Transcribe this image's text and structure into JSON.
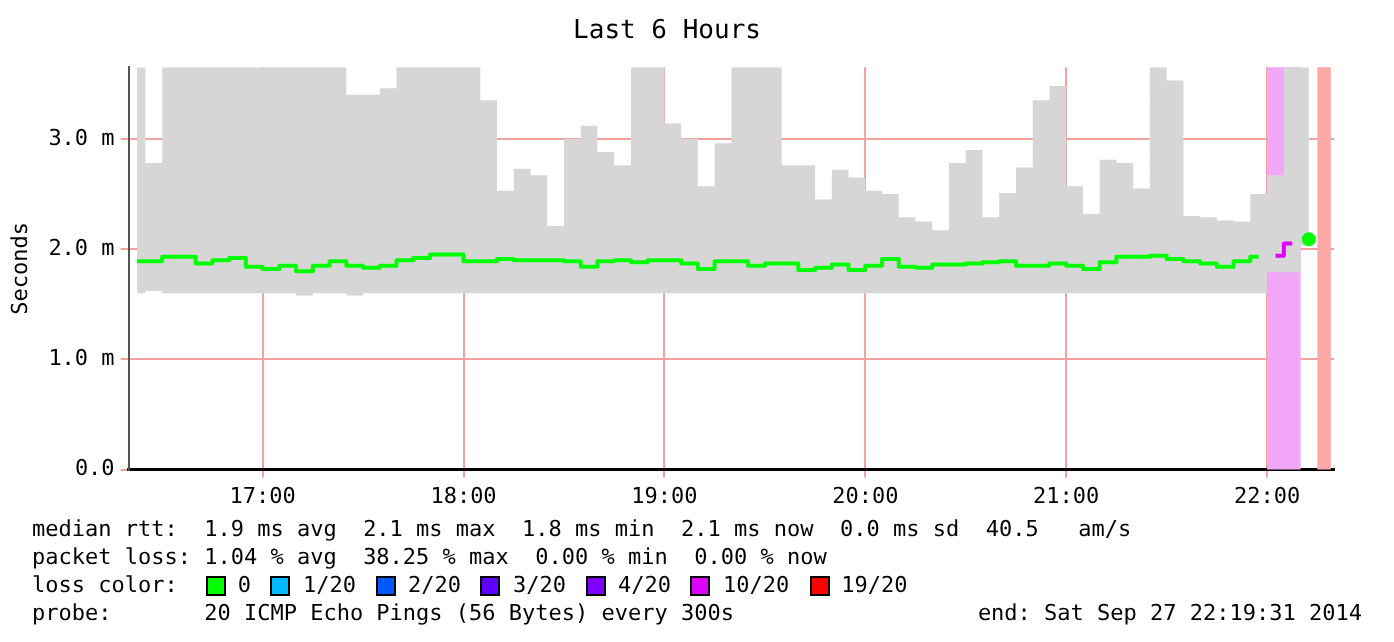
{
  "chart_data": {
    "type": "step",
    "title": "Last 6 Hours",
    "ylabel": "Seconds",
    "x": [
      16.375,
      16.458,
      16.542,
      16.625,
      16.708,
      16.792,
      16.875,
      16.958,
      17.042,
      17.125,
      17.208,
      17.292,
      17.375,
      17.458,
      17.542,
      17.625,
      17.708,
      17.792,
      17.875,
      17.958,
      18.042,
      18.125,
      18.208,
      18.292,
      18.375,
      18.458,
      18.542,
      18.625,
      18.708,
      18.792,
      18.875,
      18.958,
      19.042,
      19.125,
      19.208,
      19.292,
      19.375,
      19.458,
      19.542,
      19.625,
      19.708,
      19.792,
      19.875,
      19.958,
      20.042,
      20.125,
      20.208,
      20.292,
      20.375,
      20.458,
      20.542,
      20.625,
      20.708,
      20.792,
      20.875,
      20.958,
      21.042,
      21.125,
      21.208,
      21.292,
      21.375,
      21.458,
      21.542,
      21.625,
      21.708,
      21.792,
      21.875,
      21.958,
      22.042,
      22.125,
      22.208
    ],
    "series": [
      {
        "name": "0",
        "color": "#00ff00",
        "values": [
          1.89,
          1.89,
          1.93,
          1.93,
          1.87,
          1.9,
          1.92,
          1.84,
          1.82,
          1.85,
          1.8,
          1.85,
          1.89,
          1.85,
          1.83,
          1.85,
          1.9,
          1.92,
          1.95,
          1.95,
          1.89,
          1.89,
          1.91,
          1.9,
          1.9,
          1.9,
          1.89,
          1.84,
          1.89,
          1.9,
          1.88,
          1.9,
          1.9,
          1.87,
          1.82,
          1.89,
          1.89,
          1.85,
          1.87,
          1.87,
          1.81,
          1.83,
          1.86,
          1.81,
          1.85,
          1.91,
          1.84,
          1.83,
          1.86,
          1.86,
          1.87,
          1.88,
          1.89,
          1.85,
          1.85,
          1.87,
          1.85,
          1.82,
          1.88,
          1.93,
          1.93,
          1.94,
          1.91,
          1.89,
          1.87,
          1.84,
          1.89,
          1.93,
          null,
          null,
          2.09
        ],
        "lower": [
          1.6,
          1.62,
          1.6,
          1.6,
          1.6,
          1.6,
          1.6,
          1.6,
          1.6,
          1.6,
          1.58,
          1.6,
          1.6,
          1.58,
          1.6,
          1.6,
          1.6,
          1.6,
          1.6,
          1.6,
          1.6,
          1.6,
          1.6,
          1.6,
          1.6,
          1.6,
          1.6,
          1.6,
          1.6,
          1.6,
          1.6,
          1.6,
          1.6,
          1.6,
          1.6,
          1.6,
          1.6,
          1.6,
          1.6,
          1.6,
          1.6,
          1.6,
          1.6,
          1.6,
          1.6,
          1.6,
          1.6,
          1.6,
          1.6,
          1.6,
          1.6,
          1.6,
          1.6,
          1.6,
          1.6,
          1.6,
          1.6,
          1.6,
          1.6,
          1.6,
          1.6,
          1.6,
          1.6,
          1.6,
          1.6,
          1.6,
          1.6,
          1.6,
          1.79,
          1.79,
          2.03
        ],
        "upper": [
          3.65,
          2.78,
          3.65,
          3.65,
          3.65,
          3.65,
          3.65,
          3.65,
          3.65,
          3.65,
          3.65,
          3.65,
          3.65,
          3.4,
          3.4,
          3.46,
          3.65,
          3.65,
          3.65,
          3.65,
          3.65,
          3.35,
          2.53,
          2.73,
          2.67,
          2.21,
          3.0,
          3.12,
          2.88,
          2.76,
          3.65,
          3.65,
          3.14,
          3.0,
          2.57,
          2.96,
          3.65,
          3.65,
          3.65,
          2.76,
          2.76,
          2.45,
          2.72,
          2.65,
          2.53,
          2.5,
          2.29,
          2.25,
          2.17,
          2.78,
          2.9,
          2.29,
          2.51,
          2.74,
          3.35,
          3.48,
          2.57,
          2.32,
          2.81,
          2.78,
          2.55,
          3.65,
          3.53,
          2.3,
          2.29,
          2.26,
          2.25,
          2.5,
          2.67,
          3.65,
          3.65
        ]
      },
      {
        "name": "1/20",
        "color": "#00b8ff",
        "values": [
          null,
          null,
          null,
          null,
          null,
          null,
          null,
          null,
          null,
          null,
          null,
          null,
          null,
          null,
          null,
          null,
          null,
          null,
          null,
          null,
          null,
          null,
          null,
          null,
          null,
          null,
          null,
          null,
          null,
          null,
          null,
          null,
          null,
          null,
          null,
          null,
          null,
          null,
          null,
          null,
          null,
          null,
          null,
          null,
          null,
          null,
          null,
          null,
          null,
          null,
          null,
          null,
          null,
          null,
          null,
          null,
          null,
          null,
          null,
          null,
          null,
          null,
          null,
          null,
          null,
          null,
          null,
          null,
          null,
          null,
          null
        ]
      },
      {
        "name": "2/20",
        "color": "#0059ff",
        "values": [
          null,
          null,
          null,
          null,
          null,
          null,
          null,
          null,
          null,
          null,
          null,
          null,
          null,
          null,
          null,
          null,
          null,
          null,
          null,
          null,
          null,
          null,
          null,
          null,
          null,
          null,
          null,
          null,
          null,
          null,
          null,
          null,
          null,
          null,
          null,
          null,
          null,
          null,
          null,
          null,
          null,
          null,
          null,
          null,
          null,
          null,
          null,
          null,
          null,
          null,
          null,
          null,
          null,
          null,
          null,
          null,
          null,
          null,
          null,
          null,
          null,
          null,
          null,
          null,
          null,
          null,
          null,
          null,
          null,
          null,
          null
        ]
      },
      {
        "name": "3/20",
        "color": "#5e00ff",
        "values": [
          null,
          null,
          null,
          null,
          null,
          null,
          null,
          null,
          null,
          null,
          null,
          null,
          null,
          null,
          null,
          null,
          null,
          null,
          null,
          null,
          null,
          null,
          null,
          null,
          null,
          null,
          null,
          null,
          null,
          null,
          null,
          null,
          null,
          null,
          null,
          null,
          null,
          null,
          null,
          null,
          null,
          null,
          null,
          null,
          null,
          null,
          null,
          null,
          null,
          null,
          null,
          null,
          null,
          null,
          null,
          null,
          null,
          null,
          null,
          null,
          null,
          null,
          null,
          null,
          null,
          null,
          null,
          null,
          null,
          null,
          null
        ]
      },
      {
        "name": "4/20",
        "color": "#7e00ff",
        "values": [
          null,
          null,
          null,
          null,
          null,
          null,
          null,
          null,
          null,
          null,
          null,
          null,
          null,
          null,
          null,
          null,
          null,
          null,
          null,
          null,
          null,
          null,
          null,
          null,
          null,
          null,
          null,
          null,
          null,
          null,
          null,
          null,
          null,
          null,
          null,
          null,
          null,
          null,
          null,
          null,
          null,
          null,
          null,
          null,
          null,
          null,
          null,
          null,
          null,
          null,
          null,
          null,
          null,
          null,
          null,
          null,
          null,
          null,
          null,
          null,
          null,
          null,
          null,
          null,
          null,
          null,
          null,
          null,
          null,
          null,
          null
        ]
      },
      {
        "name": "10/20",
        "color": "#dd00ff",
        "x": [
          22.042,
          22.125
        ],
        "values": [
          1.94,
          2.05
        ]
      },
      {
        "name": "19/20",
        "color": "#ff0000",
        "values": [
          null,
          null,
          null,
          null,
          null,
          null,
          null,
          null,
          null,
          null,
          null,
          null,
          null,
          null,
          null,
          null,
          null,
          null,
          null,
          null,
          null,
          null,
          null,
          null,
          null,
          null,
          null,
          null,
          null,
          null,
          null,
          null,
          null,
          null,
          null,
          null,
          null,
          null,
          null,
          null,
          null,
          null,
          null,
          null,
          null,
          null,
          null,
          null,
          null,
          null,
          null,
          null,
          null,
          null,
          null,
          null,
          null,
          null,
          null,
          null,
          null,
          null,
          null,
          null,
          null,
          null,
          null,
          null,
          null,
          null,
          null
        ]
      }
    ],
    "xlim": [
      16.333,
      22.333
    ],
    "xticks": [
      {
        "value": 17,
        "label": "17:00"
      },
      {
        "value": 18,
        "label": "18:00"
      },
      {
        "value": 19,
        "label": "19:00"
      },
      {
        "value": 20,
        "label": "20:00"
      },
      {
        "value": 21,
        "label": "21:00"
      },
      {
        "value": 22,
        "label": "22:00"
      }
    ],
    "ylim": [
      0,
      3.65
    ],
    "yticks": [
      {
        "value": 0,
        "label": "0.0"
      },
      {
        "value": 1,
        "label": "1.0 m"
      },
      {
        "value": 2,
        "label": "2.0 m"
      },
      {
        "value": 3,
        "label": "3.0 m"
      }
    ],
    "bands": [
      {
        "axis": "x",
        "from": 22.0,
        "to": 22.167,
        "color": "#f2a6f8"
      },
      {
        "axis": "x",
        "from": 22.25,
        "to": 22.317,
        "color": "#ffa8a8"
      }
    ],
    "grid": true,
    "legend": "bottom",
    "legend_title": "loss color:",
    "annotations": [
      "median rtt:  1.9 ms avg  2.1 ms max  1.8 ms min  2.1 ms now  0.0 ms sd  40.5   am/s",
      "packet loss: 1.04 % avg  38.25 % max  0.00 % min  0.00 % now",
      "probe:       20 ICMP Echo Pings (56 Bytes) every 300s",
      "end: Sat Sep 27 22:19:31 2014"
    ]
  }
}
